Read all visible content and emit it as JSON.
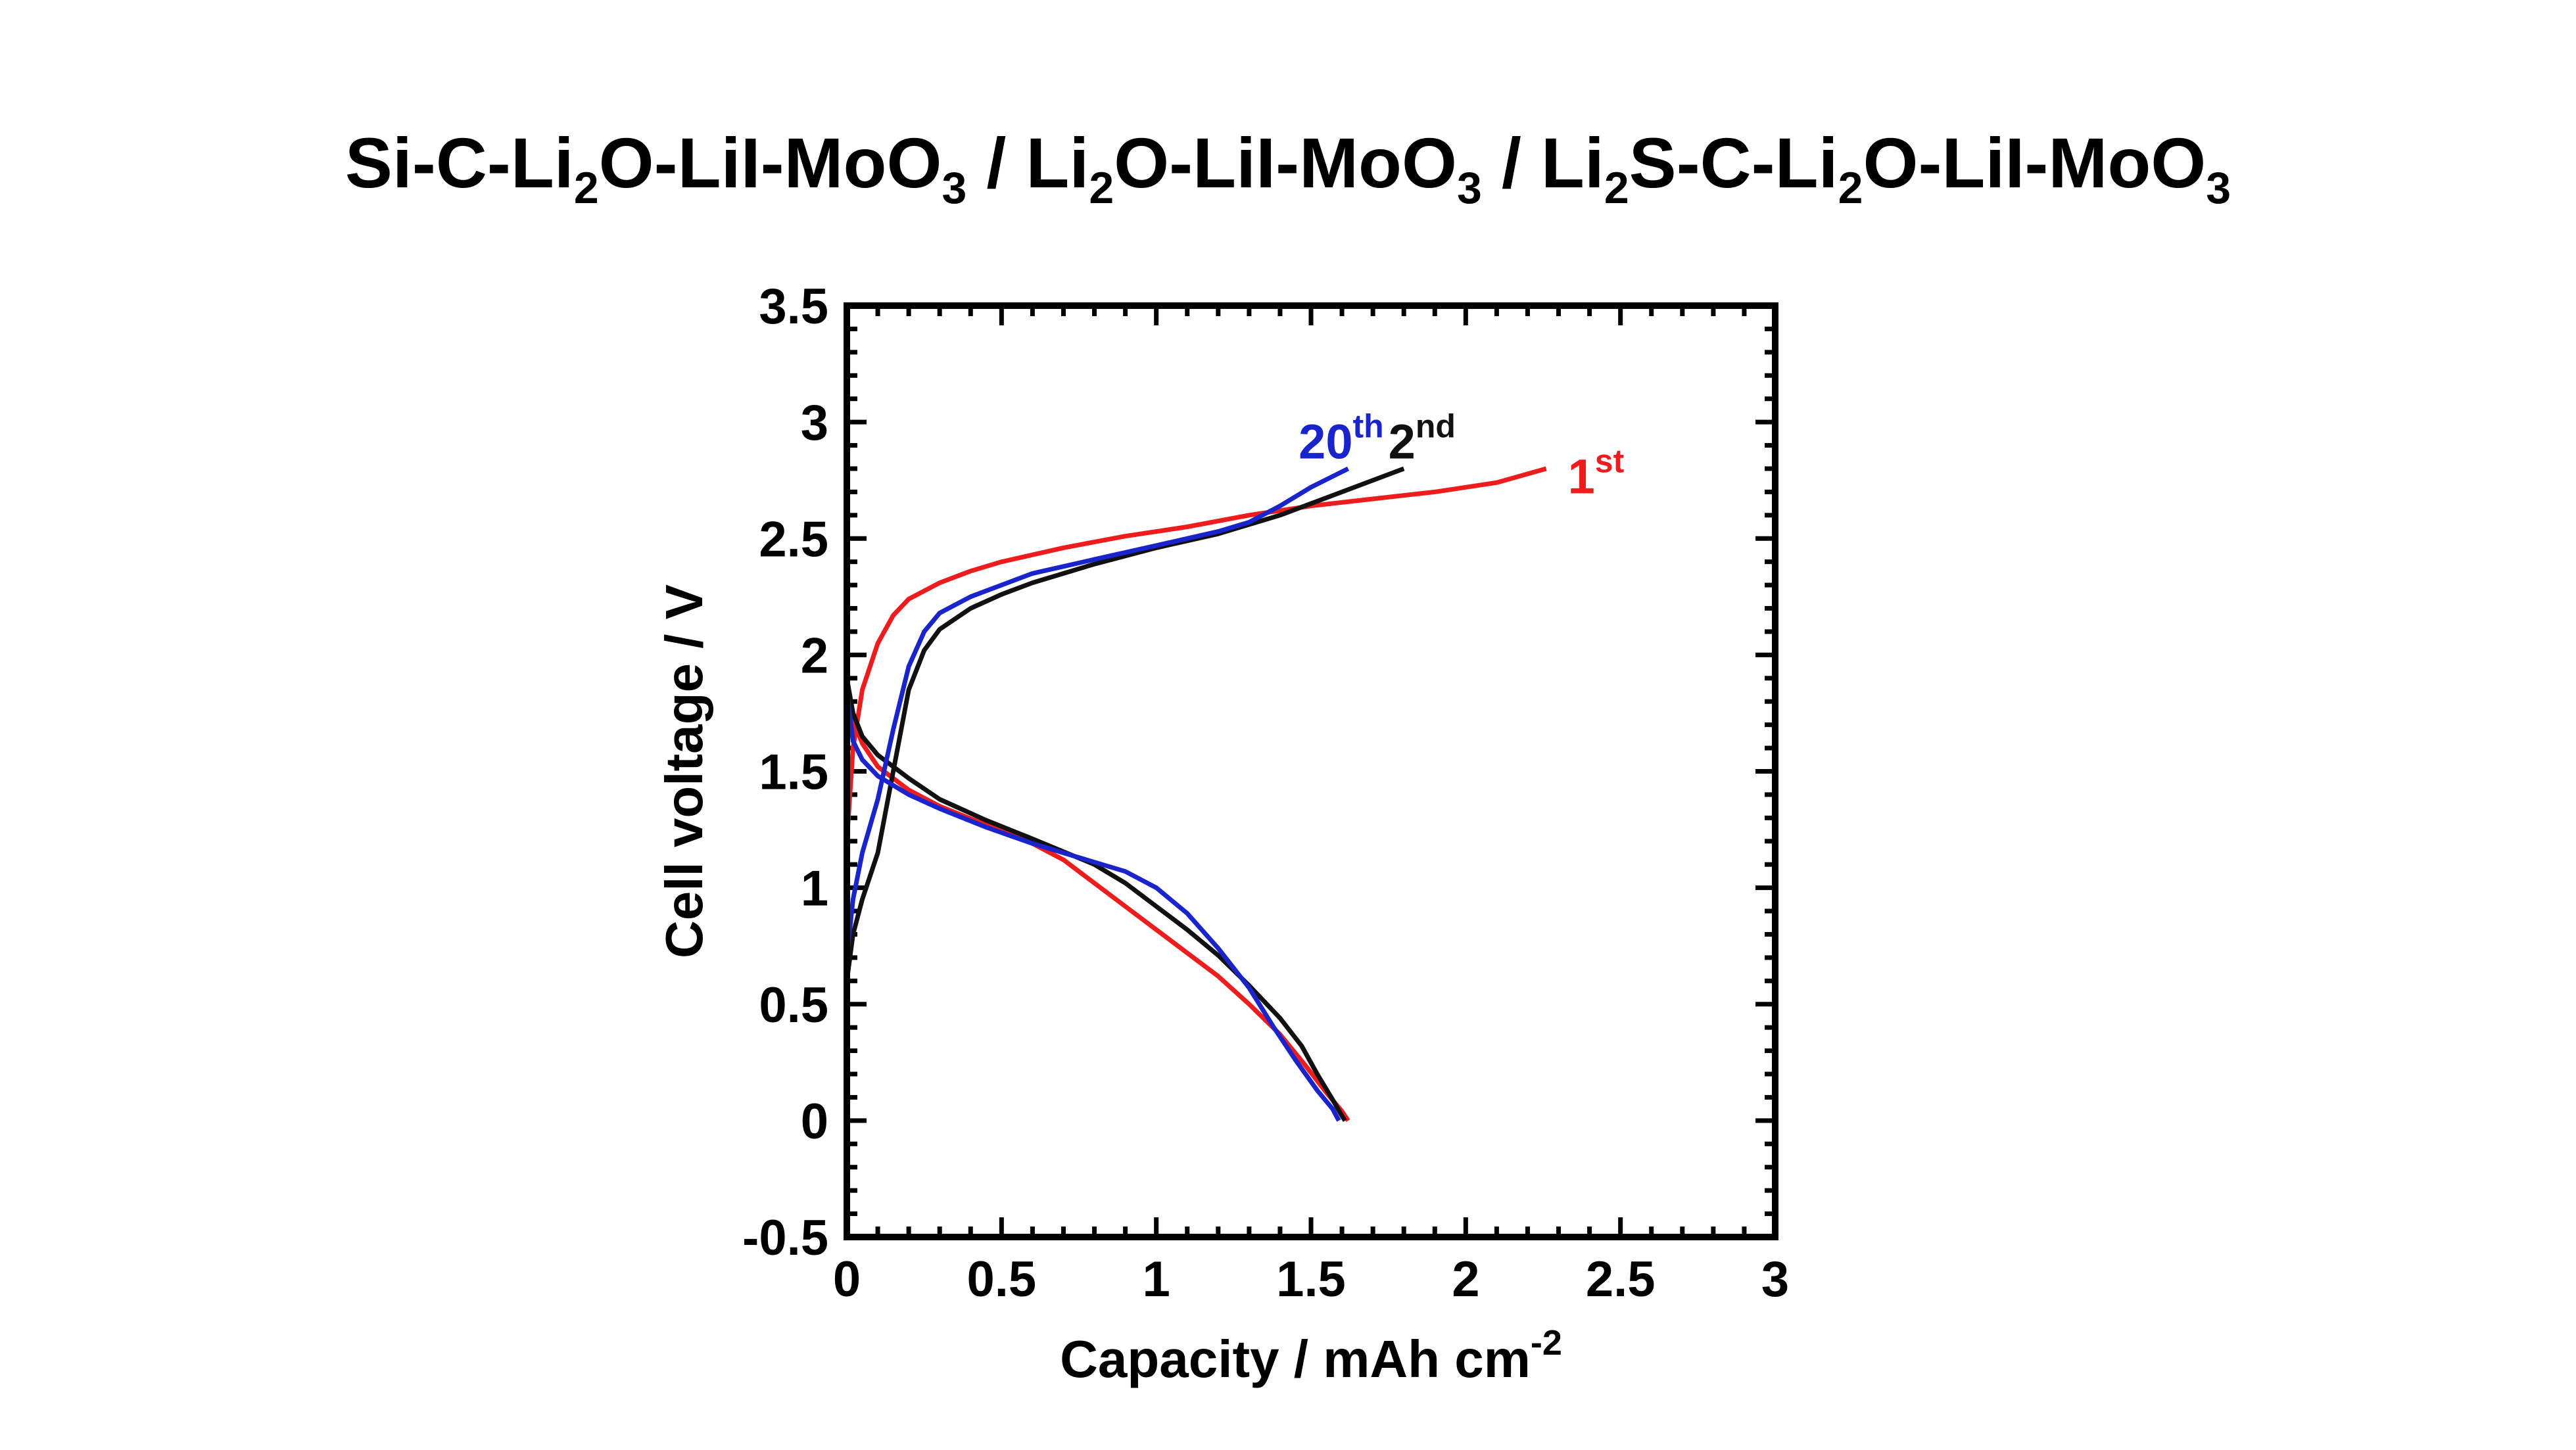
{
  "chart_data": {
    "type": "line",
    "title_parts": [
      {
        "t": "Si-C-Li"
      },
      {
        "t": "2",
        "sub": true
      },
      {
        "t": "O-LiI-MoO"
      },
      {
        "t": "3",
        "sub": true
      },
      {
        "t": " / Li"
      },
      {
        "t": "2",
        "sub": true
      },
      {
        "t": "O-LiI-MoO"
      },
      {
        "t": "3",
        "sub": true
      },
      {
        "t": " / Li"
      },
      {
        "t": "2",
        "sub": true
      },
      {
        "t": "S-C-Li"
      },
      {
        "t": "2",
        "sub": true
      },
      {
        "t": "O-LiI-MoO"
      },
      {
        "t": "3",
        "sub": true
      }
    ],
    "xlabel": "Capacity / mAh cm",
    "xlabel_sup": "-2",
    "ylabel": "Cell voltage / V",
    "xlim": [
      0,
      3
    ],
    "ylim": [
      -0.5,
      3.5
    ],
    "xticks": [
      "0",
      "0.5",
      "1",
      "1.5",
      "2",
      "2.5",
      "3"
    ],
    "yticks": [
      "-0.5",
      "0",
      "0.5",
      "1",
      "1.5",
      "2",
      "2.5",
      "3",
      "3.5"
    ],
    "grid": false,
    "series": [
      {
        "name": "1",
        "name_sup": "st",
        "color": "#ee1c1c",
        "charge": [
          [
            0,
            1.2
          ],
          [
            0.02,
            1.6
          ],
          [
            0.05,
            1.85
          ],
          [
            0.1,
            2.05
          ],
          [
            0.15,
            2.17
          ],
          [
            0.2,
            2.24
          ],
          [
            0.3,
            2.31
          ],
          [
            0.4,
            2.36
          ],
          [
            0.5,
            2.4
          ],
          [
            0.7,
            2.46
          ],
          [
            0.9,
            2.51
          ],
          [
            1.1,
            2.55
          ],
          [
            1.3,
            2.6
          ],
          [
            1.5,
            2.64
          ],
          [
            1.7,
            2.67
          ],
          [
            1.9,
            2.7
          ],
          [
            2.1,
            2.74
          ],
          [
            2.26,
            2.8
          ]
        ],
        "discharge": [
          [
            0,
            1.85
          ],
          [
            0.02,
            1.72
          ],
          [
            0.05,
            1.62
          ],
          [
            0.1,
            1.52
          ],
          [
            0.2,
            1.42
          ],
          [
            0.3,
            1.35
          ],
          [
            0.45,
            1.27
          ],
          [
            0.6,
            1.19
          ],
          [
            0.7,
            1.12
          ],
          [
            0.8,
            1.02
          ],
          [
            0.9,
            0.92
          ],
          [
            1.0,
            0.82
          ],
          [
            1.1,
            0.72
          ],
          [
            1.2,
            0.62
          ],
          [
            1.3,
            0.5
          ],
          [
            1.4,
            0.37
          ],
          [
            1.48,
            0.24
          ],
          [
            1.55,
            0.12
          ],
          [
            1.6,
            0.04
          ],
          [
            1.62,
            0.0
          ]
        ]
      },
      {
        "name": "2",
        "name_sup": "nd",
        "color": "#111111",
        "charge": [
          [
            0,
            0.6
          ],
          [
            0.02,
            0.8
          ],
          [
            0.05,
            0.95
          ],
          [
            0.1,
            1.15
          ],
          [
            0.15,
            1.5
          ],
          [
            0.2,
            1.85
          ],
          [
            0.25,
            2.02
          ],
          [
            0.3,
            2.11
          ],
          [
            0.4,
            2.2
          ],
          [
            0.5,
            2.26
          ],
          [
            0.6,
            2.31
          ],
          [
            0.8,
            2.39
          ],
          [
            1.0,
            2.46
          ],
          [
            1.2,
            2.52
          ],
          [
            1.4,
            2.6
          ],
          [
            1.6,
            2.7
          ],
          [
            1.8,
            2.8
          ]
        ],
        "discharge": [
          [
            0,
            1.9
          ],
          [
            0.02,
            1.75
          ],
          [
            0.05,
            1.65
          ],
          [
            0.1,
            1.57
          ],
          [
            0.2,
            1.47
          ],
          [
            0.3,
            1.38
          ],
          [
            0.45,
            1.29
          ],
          [
            0.6,
            1.21
          ],
          [
            0.8,
            1.1
          ],
          [
            0.9,
            1.02
          ],
          [
            1.0,
            0.92
          ],
          [
            1.1,
            0.82
          ],
          [
            1.2,
            0.71
          ],
          [
            1.3,
            0.58
          ],
          [
            1.4,
            0.44
          ],
          [
            1.47,
            0.32
          ],
          [
            1.52,
            0.2
          ],
          [
            1.57,
            0.09
          ],
          [
            1.6,
            0.02
          ],
          [
            1.61,
            0.0
          ]
        ]
      },
      {
        "name": "20",
        "name_sup": "th",
        "color": "#1a24cc",
        "charge": [
          [
            0,
            0.7
          ],
          [
            0.02,
            0.95
          ],
          [
            0.05,
            1.15
          ],
          [
            0.1,
            1.38
          ],
          [
            0.15,
            1.68
          ],
          [
            0.2,
            1.95
          ],
          [
            0.25,
            2.1
          ],
          [
            0.3,
            2.18
          ],
          [
            0.4,
            2.25
          ],
          [
            0.5,
            2.3
          ],
          [
            0.6,
            2.35
          ],
          [
            0.8,
            2.41
          ],
          [
            1.0,
            2.47
          ],
          [
            1.2,
            2.53
          ],
          [
            1.3,
            2.57
          ],
          [
            1.4,
            2.64
          ],
          [
            1.5,
            2.72
          ],
          [
            1.62,
            2.8
          ]
        ],
        "discharge": [
          [
            0,
            1.85
          ],
          [
            0.02,
            1.63
          ],
          [
            0.05,
            1.55
          ],
          [
            0.1,
            1.48
          ],
          [
            0.2,
            1.4
          ],
          [
            0.3,
            1.34
          ],
          [
            0.45,
            1.26
          ],
          [
            0.6,
            1.19
          ],
          [
            0.75,
            1.13
          ],
          [
            0.9,
            1.07
          ],
          [
            1.0,
            1.0
          ],
          [
            1.1,
            0.89
          ],
          [
            1.2,
            0.74
          ],
          [
            1.3,
            0.57
          ],
          [
            1.38,
            0.4
          ],
          [
            1.45,
            0.26
          ],
          [
            1.52,
            0.13
          ],
          [
            1.57,
            0.05
          ],
          [
            1.59,
            0.0
          ]
        ]
      }
    ],
    "annotations": [
      {
        "text": "20",
        "sup": "th",
        "color": "#1a24cc",
        "x": 1.46,
        "y": 2.9
      },
      {
        "text": "2",
        "sup": "nd",
        "color": "#111111",
        "x": 1.75,
        "y": 2.9
      },
      {
        "text": "1",
        "sup": "st",
        "color": "#ee1c1c",
        "x": 2.33,
        "y": 2.75
      }
    ]
  }
}
